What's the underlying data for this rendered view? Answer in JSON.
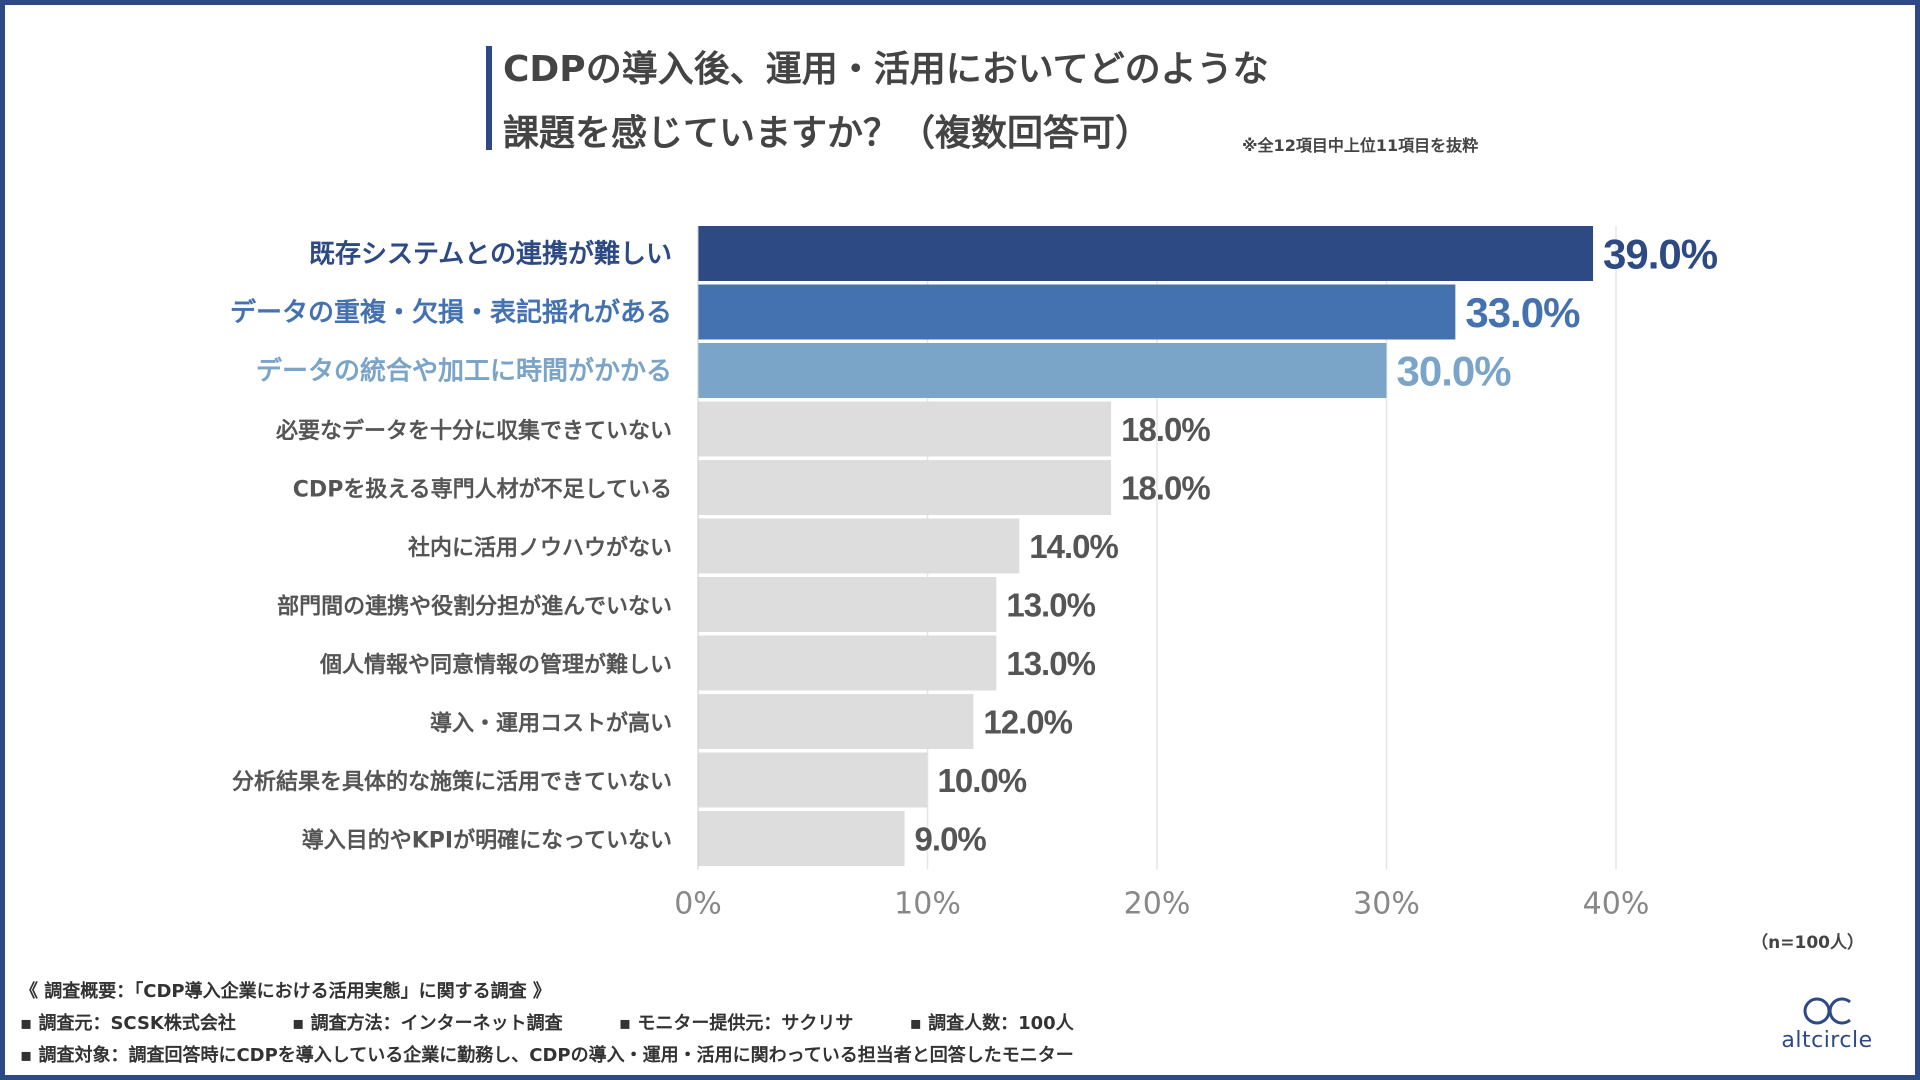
{
  "header": {
    "title_line1": "CDPの導入後、運用・活用においてどのような",
    "title_line2": "課題を感じていますか？（複数回答可）",
    "note": "※全12項目中上位11項目を抜粋"
  },
  "chart_data": {
    "type": "bar",
    "orientation": "horizontal",
    "categories": [
      "既存システムとの連携が難しい",
      "データの重複・欠損・表記揺れがある",
      "データの統合や加工に時間がかかる",
      "必要なデータを十分に収集できていない",
      "CDPを扱える専門人材が不足している",
      "社内に活用ノウハウがない",
      "部門間の連携や役割分担が進んでいない",
      "個人情報や同意情報の管理が難しい",
      "導入・運用コストが高い",
      "分析結果を具体的な施策に活用できていない",
      "導入目的やKPIが明確になっていない"
    ],
    "values": [
      39.0,
      33.0,
      30.0,
      18.0,
      18.0,
      14.0,
      13.0,
      13.0,
      12.0,
      10.0,
      9.0
    ],
    "value_labels": [
      "39.0%",
      "33.0%",
      "30.0%",
      "18.0%",
      "18.0%",
      "14.0%",
      "13.0%",
      "13.0%",
      "12.0%",
      "10.0%",
      "9.0%"
    ],
    "xlim": [
      0,
      40
    ],
    "xticks": [
      0,
      10,
      20,
      30,
      40
    ],
    "xtick_labels": [
      "0%",
      "10%",
      "20%",
      "30%",
      "40%"
    ],
    "grid": true,
    "colors": [
      "#2e4a84",
      "#4472b0",
      "#7ba4c9",
      "#dddddd",
      "#dddddd",
      "#dddddd",
      "#dddddd",
      "#dddddd",
      "#dddddd",
      "#dddddd",
      "#dddddd"
    ],
    "label_colors": [
      "#2e4a84",
      "#4472b0",
      "#7ba4c9",
      "#555555",
      "#555555",
      "#555555",
      "#555555",
      "#555555",
      "#555555",
      "#555555",
      "#555555"
    ]
  },
  "sample_size": "（n=100人）",
  "footer": {
    "survey_title": "《 調査概要：「CDP導入企業における活用実態」に関する調査 》",
    "meta": [
      "▪ 調査元：SCSK株式会社",
      "▪ 調査方法：インターネット調査",
      "▪ モニター提供元：サクリサ",
      "▪ 調査人数：100人"
    ],
    "target": "▪ 調査対象：調査回答時にCDPを導入している企業に勤務し、CDPの導入・運用・活用に関わっている担当者と回答したモニター"
  },
  "logo": {
    "text": "altcircle",
    "icon": "double-circle-logo-icon",
    "color": "#2e4a84"
  }
}
